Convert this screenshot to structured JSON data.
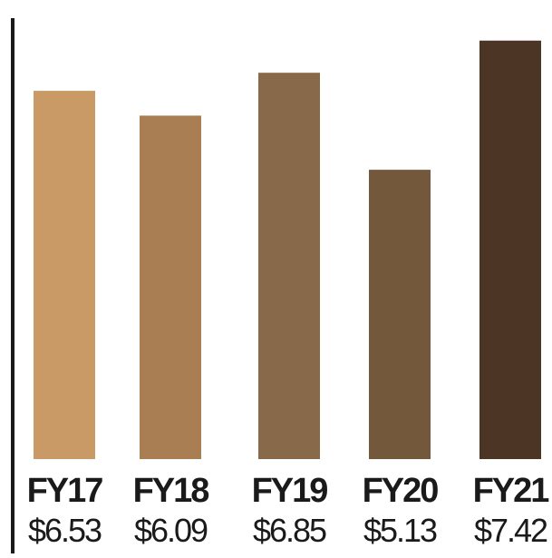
{
  "chart_data": {
    "type": "bar",
    "categories": [
      "FY17",
      "FY18",
      "FY19",
      "FY20",
      "FY21"
    ],
    "values": [
      6.53,
      6.09,
      6.85,
      5.13,
      7.42
    ],
    "value_labels": [
      "$6.53",
      "$6.09",
      "$6.85",
      "$5.13",
      "$7.42"
    ],
    "colors": [
      "#c99a66",
      "#a97e53",
      "#886949",
      "#73583b",
      "#4c3524"
    ],
    "title": "",
    "xlabel": "",
    "ylabel": "",
    "ylim": [
      0,
      8.14
    ],
    "grid": false,
    "legend": "none"
  }
}
